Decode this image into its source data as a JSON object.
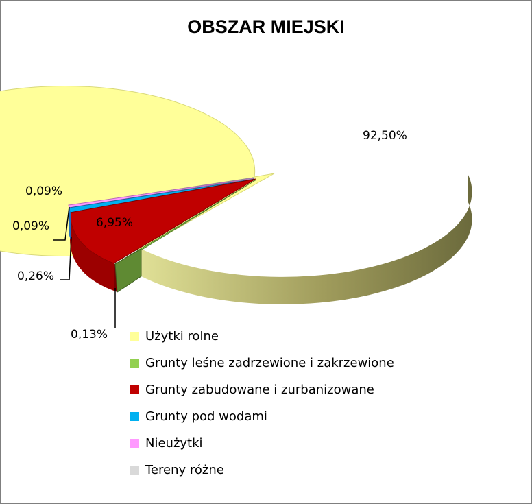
{
  "chart_data": {
    "type": "pie",
    "title": "OBSZAR MIEJSKI",
    "three_d": true,
    "legend_position": "bottom",
    "slices": [
      {
        "name": "Użytki rolne",
        "value": 92.5,
        "label": "92,50%",
        "color": "#ffff99"
      },
      {
        "name": "Grunty leśne zadrzewione i zakrzewione",
        "value": 0.13,
        "label": "0,13%",
        "color": "#92d050"
      },
      {
        "name": "Grunty zabudowane i zurbanizowane",
        "value": 6.95,
        "label": "6,95%",
        "color": "#c00000"
      },
      {
        "name": "Grunty pod wodami",
        "value": 0.26,
        "label": "0,26%",
        "color": "#00b0f0"
      },
      {
        "name": "Nieużytki",
        "value": 0.09,
        "label": "0,09%",
        "color": "#ff99ff"
      },
      {
        "name": "Tereny różne",
        "value": 0.09,
        "label": "0,09%",
        "color": "#d9d9d9"
      }
    ]
  }
}
